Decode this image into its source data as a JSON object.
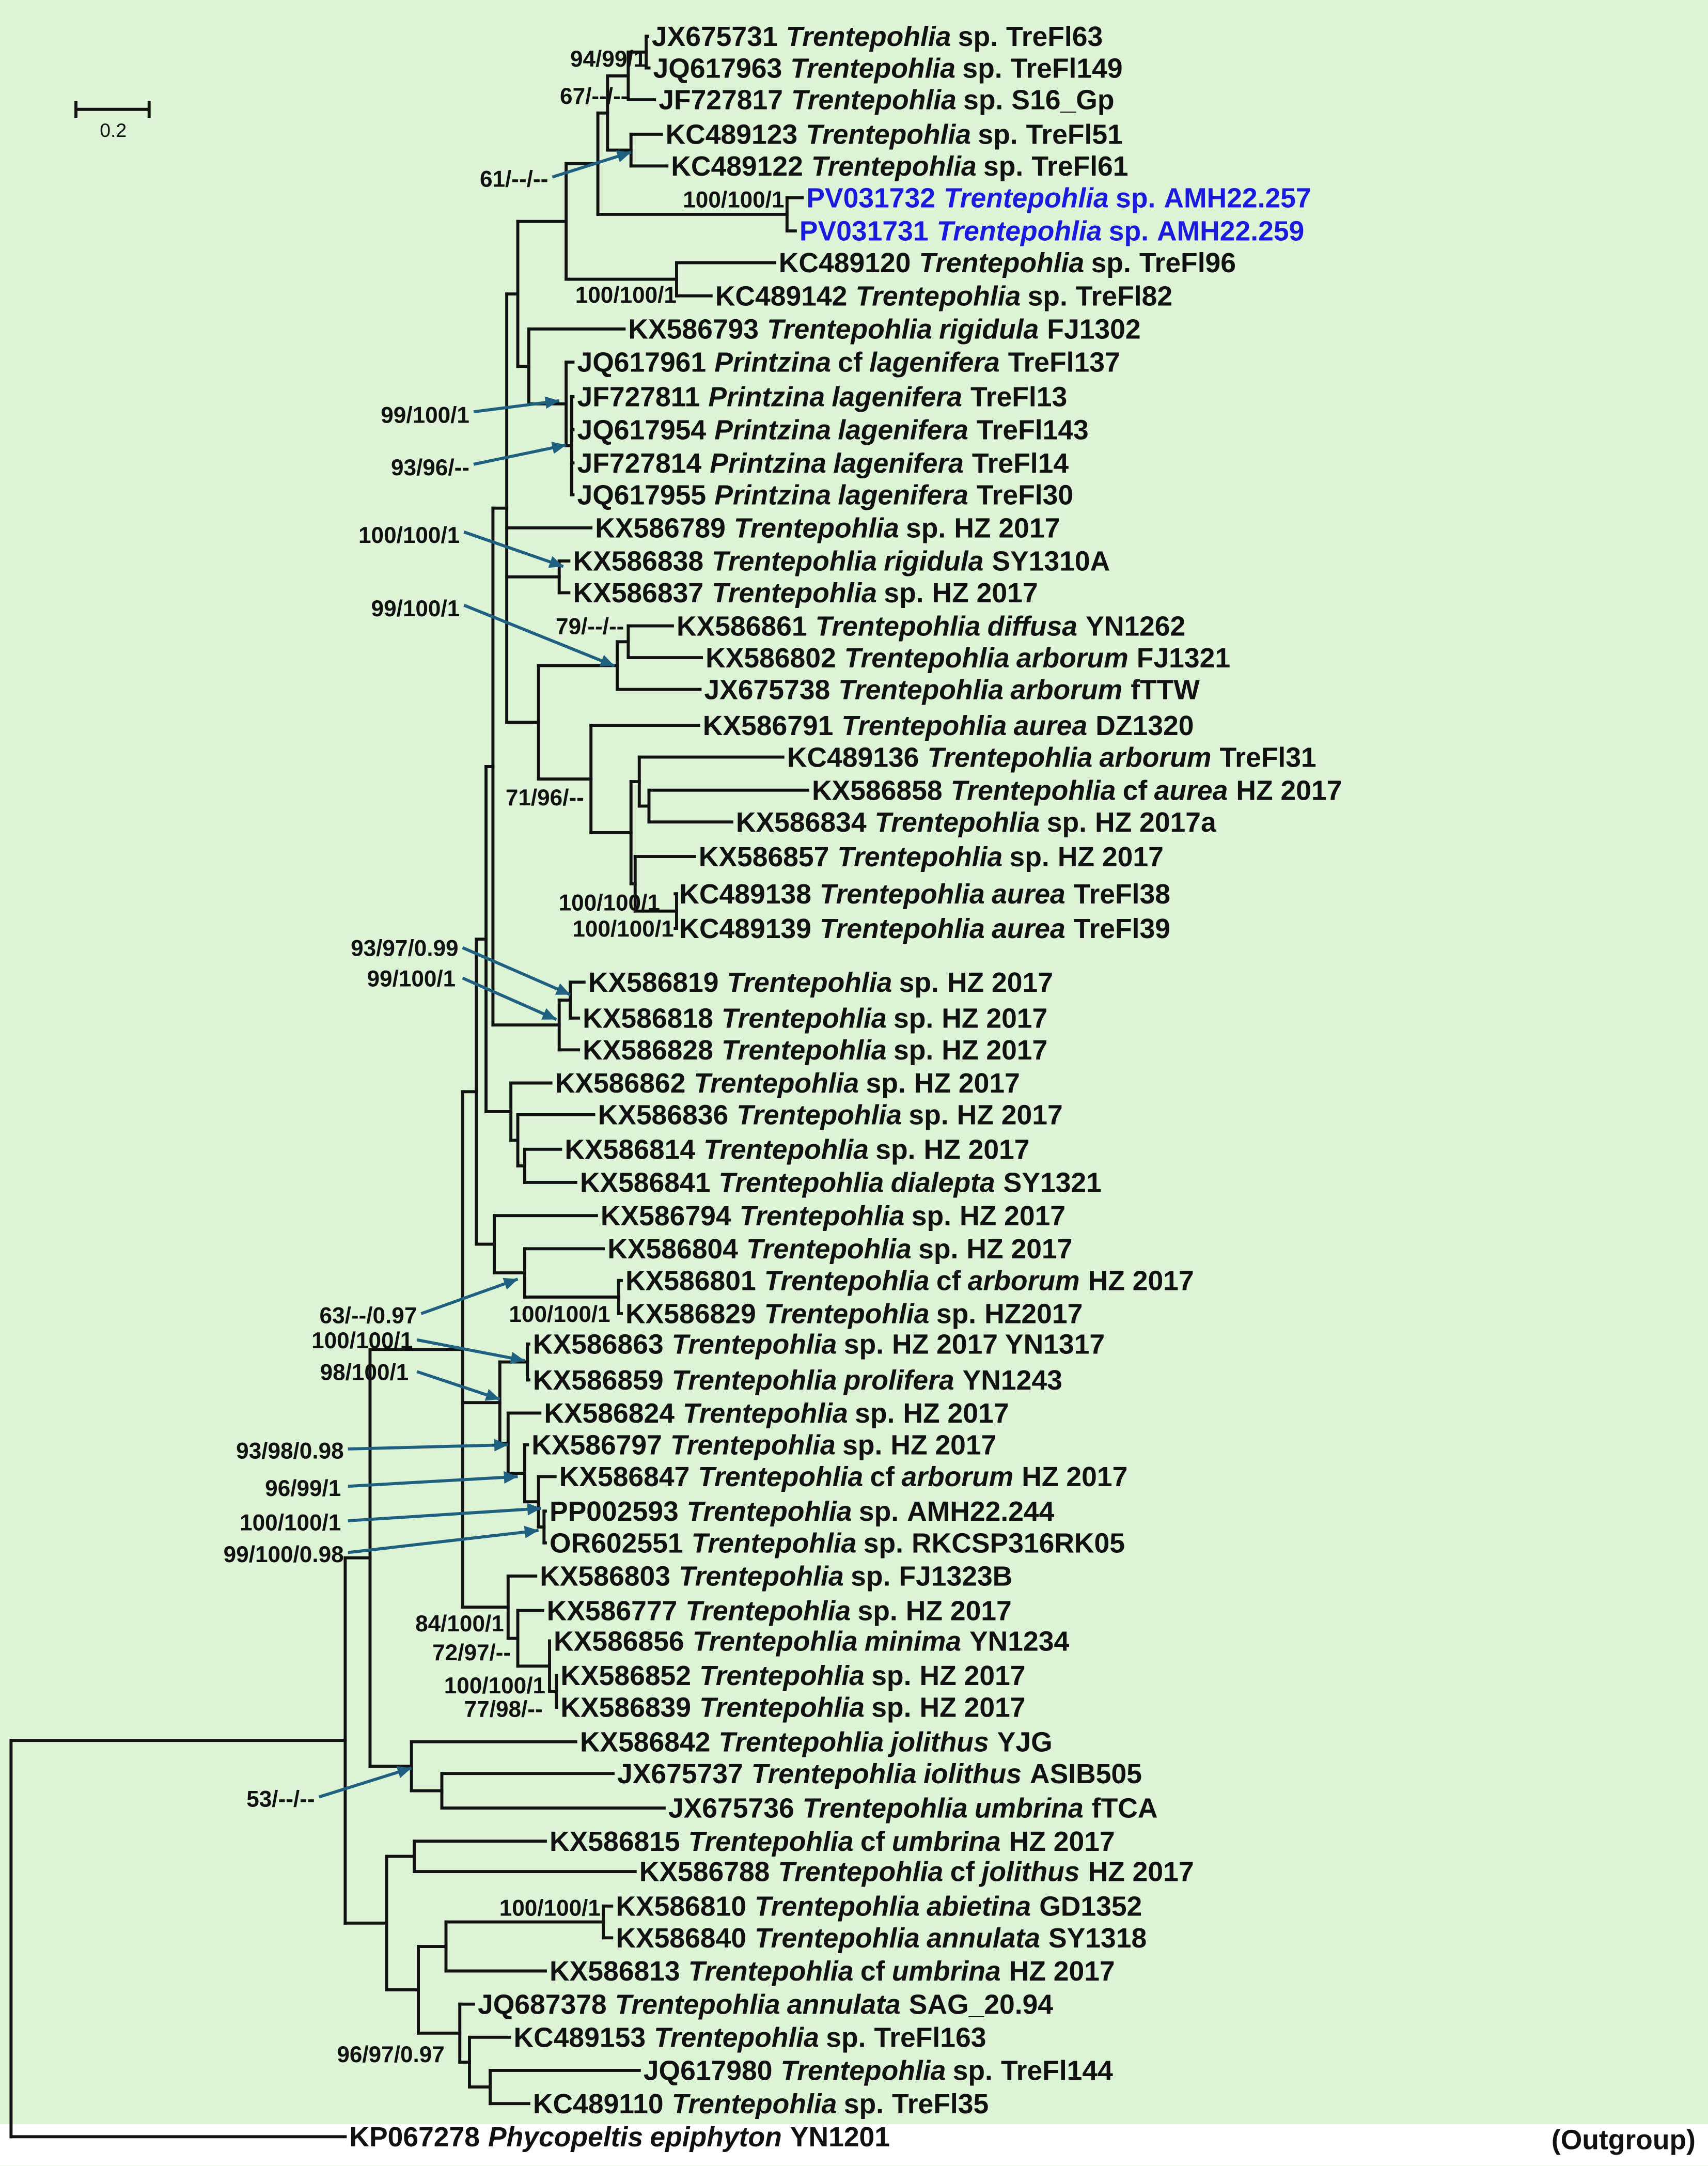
{
  "scale_bar": {
    "label": "0.2"
  },
  "outgroup_label": "(Outgroup)",
  "colors": {
    "background": "#dcf3d6",
    "highlight": "#1a1adf",
    "arrow": "#1f5f80",
    "branch": "#111111"
  },
  "taxa": [
    {
      "acc": "JX675731",
      "genus": "Trentepohlia",
      "rank": "sp.",
      "epithet": "",
      "strain": "TreFl63"
    },
    {
      "acc": "JQ617963",
      "genus": "Trentepohlia",
      "rank": "sp.",
      "epithet": "",
      "strain": "TreFl149"
    },
    {
      "acc": "JF727817",
      "genus": "Trentepohlia",
      "rank": "sp.",
      "epithet": "",
      "strain": "S16_Gp"
    },
    {
      "acc": "KC489123",
      "genus": "Trentepohlia",
      "rank": "sp.",
      "epithet": "",
      "strain": "TreFl51"
    },
    {
      "acc": "KC489122",
      "genus": "Trentepohlia",
      "rank": "sp.",
      "epithet": "",
      "strain": "TreFl61"
    },
    {
      "acc": "PV031732",
      "genus": "Trentepohlia",
      "rank": "sp.",
      "epithet": "",
      "strain": "AMH22.257",
      "highlight": true
    },
    {
      "acc": "PV031731",
      "genus": "Trentepohlia",
      "rank": "sp.",
      "epithet": "",
      "strain": "AMH22.259",
      "highlight": true
    },
    {
      "acc": "KC489120",
      "genus": "Trentepohlia",
      "rank": "sp.",
      "epithet": "",
      "strain": "TreFl96"
    },
    {
      "acc": "KC489142",
      "genus": "Trentepohlia",
      "rank": "sp.",
      "epithet": "",
      "strain": "TreFl82"
    },
    {
      "acc": "KX586793",
      "genus": "Trentepohlia",
      "rank": "",
      "epithet": "rigidula",
      "strain": "FJ1302"
    },
    {
      "acc": "JQ617961",
      "genus": "Printzina",
      "rank": "cf",
      "epithet": "lagenifera",
      "strain": "TreFl137"
    },
    {
      "acc": "JF727811",
      "genus": "Printzina",
      "rank": "",
      "epithet": "lagenifera",
      "strain": "TreFl13"
    },
    {
      "acc": "JQ617954",
      "genus": "Printzina",
      "rank": "",
      "epithet": "lagenifera",
      "strain": "TreFl143"
    },
    {
      "acc": "JF727814",
      "genus": "Printzina",
      "rank": "",
      "epithet": "lagenifera",
      "strain": "TreFl14"
    },
    {
      "acc": "JQ617955",
      "genus": "Printzina",
      "rank": "",
      "epithet": "lagenifera",
      "strain": "TreFl30"
    },
    {
      "acc": "KX586789",
      "genus": "Trentepohlia",
      "rank": "sp.",
      "epithet": "",
      "strain": "HZ 2017"
    },
    {
      "acc": "KX586838",
      "genus": "Trentepohlia",
      "rank": "",
      "epithet": "rigidula",
      "strain": "SY1310A"
    },
    {
      "acc": "KX586837",
      "genus": "Trentepohlia",
      "rank": "sp.",
      "epithet": "",
      "strain": "HZ 2017"
    },
    {
      "acc": "KX586861",
      "genus": "Trentepohlia",
      "rank": "",
      "epithet": "diffusa",
      "strain": "YN1262"
    },
    {
      "acc": "KX586802",
      "genus": "Trentepohlia",
      "rank": "",
      "epithet": "arborum",
      "strain": "FJ1321"
    },
    {
      "acc": "JX675738",
      "genus": "Trentepohlia",
      "rank": "",
      "epithet": "arborum",
      "strain": "fTTW"
    },
    {
      "acc": "KX586791",
      "genus": "Trentepohlia",
      "rank": "",
      "epithet": "aurea",
      "strain": "DZ1320"
    },
    {
      "acc": "KC489136",
      "genus": "Trentepohlia",
      "rank": "",
      "epithet": "arborum",
      "strain": "TreFl31"
    },
    {
      "acc": "KX586858",
      "genus": "Trentepohlia",
      "rank": "cf",
      "epithet": "aurea",
      "strain": "HZ 2017"
    },
    {
      "acc": "KX586834",
      "genus": "Trentepohlia",
      "rank": "sp.",
      "epithet": "",
      "strain": "HZ 2017a"
    },
    {
      "acc": "KX586857",
      "genus": "Trentepohlia",
      "rank": "sp.",
      "epithet": "",
      "strain": "HZ 2017"
    },
    {
      "acc": "KC489138",
      "genus": "Trentepohlia",
      "rank": "",
      "epithet": "aurea",
      "strain": "TreFl38"
    },
    {
      "acc": "KC489139",
      "genus": "Trentepohlia",
      "rank": "",
      "epithet": "aurea",
      "strain": "TreFl39"
    },
    {
      "acc": "KX586819",
      "genus": "Trentepohlia",
      "rank": "sp.",
      "epithet": "",
      "strain": "HZ 2017"
    },
    {
      "acc": "KX586818",
      "genus": "Trentepohlia",
      "rank": "sp.",
      "epithet": "",
      "strain": "HZ 2017"
    },
    {
      "acc": "KX586828",
      "genus": "Trentepohlia",
      "rank": "sp.",
      "epithet": "",
      "strain": "HZ 2017"
    },
    {
      "acc": "KX586862",
      "genus": "Trentepohlia",
      "rank": "sp.",
      "epithet": "",
      "strain": "HZ 2017"
    },
    {
      "acc": "KX586836",
      "genus": "Trentepohlia",
      "rank": "sp.",
      "epithet": "",
      "strain": "HZ 2017"
    },
    {
      "acc": "KX586814",
      "genus": "Trentepohlia",
      "rank": "sp.",
      "epithet": "",
      "strain": "HZ 2017"
    },
    {
      "acc": "KX586841",
      "genus": "Trentepohlia",
      "rank": "",
      "epithet": "dialepta",
      "strain": "SY1321"
    },
    {
      "acc": "KX586794",
      "genus": "Trentepohlia",
      "rank": "sp.",
      "epithet": "",
      "strain": "HZ 2017"
    },
    {
      "acc": "KX586804",
      "genus": "Trentepohlia",
      "rank": "sp.",
      "epithet": "",
      "strain": "HZ 2017"
    },
    {
      "acc": "KX586801",
      "genus": "Trentepohlia",
      "rank": "cf",
      "epithet": "arborum",
      "strain": "HZ 2017"
    },
    {
      "acc": "KX586829",
      "genus": "Trentepohlia",
      "rank": "sp.",
      "epithet": "",
      "strain": "HZ2017"
    },
    {
      "acc": "KX586863",
      "genus": "Trentepohlia",
      "rank": "sp.",
      "epithet": "",
      "strain": "HZ 2017 YN1317"
    },
    {
      "acc": "KX586859",
      "genus": "Trentepohlia",
      "rank": "",
      "epithet": "prolifera",
      "strain": "YN1243"
    },
    {
      "acc": "KX586824",
      "genus": "Trentepohlia",
      "rank": "sp.",
      "epithet": "",
      "strain": "HZ 2017"
    },
    {
      "acc": "KX586797",
      "genus": "Trentepohlia",
      "rank": "sp.",
      "epithet": "",
      "strain": "HZ 2017"
    },
    {
      "acc": "KX586847",
      "genus": "Trentepohlia",
      "rank": "cf",
      "epithet": "arborum",
      "strain": "HZ 2017"
    },
    {
      "acc": "PP002593",
      "genus": "Trentepohlia",
      "rank": "sp.",
      "epithet": "",
      "strain": "AMH22.244"
    },
    {
      "acc": "OR602551",
      "genus": "Trentepohlia",
      "rank": "sp.",
      "epithet": "",
      "strain": "RKCSP316RK05"
    },
    {
      "acc": "KX586803",
      "genus": "Trentepohlia",
      "rank": "sp.",
      "epithet": "",
      "strain": "FJ1323B"
    },
    {
      "acc": "KX586777",
      "genus": "Trentepohlia",
      "rank": "sp.",
      "epithet": "",
      "strain": "HZ 2017"
    },
    {
      "acc": "KX586856",
      "genus": "Trentepohlia",
      "rank": "",
      "epithet": "minima",
      "strain": "YN1234"
    },
    {
      "acc": "KX586852",
      "genus": "Trentepohlia",
      "rank": "sp.",
      "epithet": "",
      "strain": "HZ 2017"
    },
    {
      "acc": "KX586839",
      "genus": "Trentepohlia",
      "rank": "sp.",
      "epithet": "",
      "strain": "HZ 2017"
    },
    {
      "acc": "KX586842",
      "genus": "Trentepohlia",
      "rank": "",
      "epithet": "jolithus",
      "strain": "YJG"
    },
    {
      "acc": "JX675737",
      "genus": "Trentepohlia",
      "rank": "",
      "epithet": "iolithus",
      "strain": "ASIB505"
    },
    {
      "acc": "JX675736",
      "genus": "Trentepohlia",
      "rank": "",
      "epithet": "umbrina",
      "strain": "fTCA"
    },
    {
      "acc": "KX586815",
      "genus": "Trentepohlia",
      "rank": "cf",
      "epithet": "umbrina",
      "strain": "HZ 2017"
    },
    {
      "acc": "KX586788",
      "genus": "Trentepohlia",
      "rank": "cf",
      "epithet": "jolithus",
      "strain": "HZ 2017"
    },
    {
      "acc": "KX586810",
      "genus": "Trentepohlia",
      "rank": "",
      "epithet": "abietina",
      "strain": "GD1352"
    },
    {
      "acc": "KX586840",
      "genus": "Trentepohlia",
      "rank": "",
      "epithet": "annulata",
      "strain": "SY1318"
    },
    {
      "acc": "KX586813",
      "genus": "Trentepohlia",
      "rank": "cf",
      "epithet": "umbrina",
      "strain": "HZ 2017"
    },
    {
      "acc": "JQ687378",
      "genus": "Trentepohlia",
      "rank": "",
      "epithet": "annulata",
      "strain": "SAG_20.94"
    },
    {
      "acc": "KC489153",
      "genus": "Trentepohlia",
      "rank": "sp.",
      "epithet": "",
      "strain": "TreFl163"
    },
    {
      "acc": "JQ617980",
      "genus": "Trentepohlia",
      "rank": "sp.",
      "epithet": "",
      "strain": "TreFl144"
    },
    {
      "acc": "KC489110",
      "genus": "Trentepohlia",
      "rank": "sp.",
      "epithet": "",
      "strain": "TreFl35"
    },
    {
      "acc": "KP067278",
      "genus": "Phycopeltis",
      "rank": "",
      "epithet": "epiphyton",
      "strain": "YN1201"
    }
  ],
  "supports": [
    "94/99/1",
    "67/--/--",
    "61/--/--",
    "100/100/1",
    "100/100/1",
    "99/100/1",
    "93/96/--",
    "100/100/1",
    "99/100/1",
    "79/--/--",
    "71/96/--",
    "100/100/1",
    "100/100/1",
    "93/97/0.99",
    "99/100/1",
    "63/--/0.97",
    "100/100/1",
    "100/100/1",
    "98/100/1",
    "93/98/0.98",
    "96/99/1",
    "100/100/1",
    "99/100/0.98",
    "84/100/1",
    "72/97/--",
    "100/100/1",
    "77/98/--",
    "53/--/--",
    "100/100/1",
    "96/97/0.97"
  ]
}
